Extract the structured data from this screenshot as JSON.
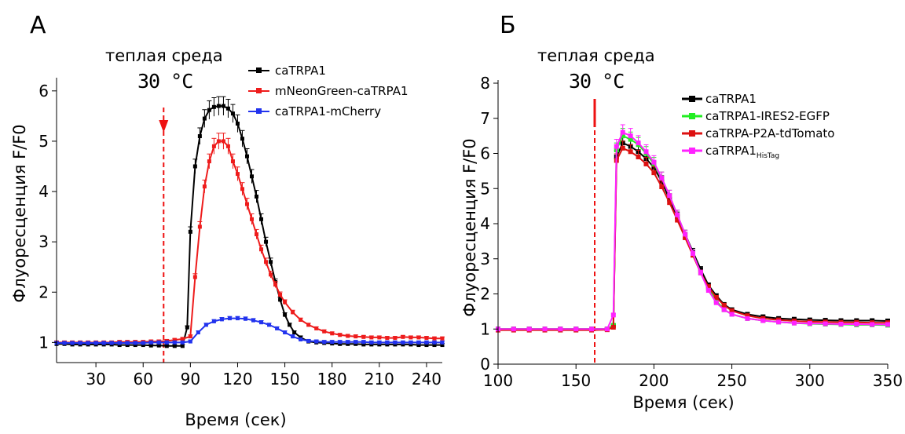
{
  "chart_data": [
    {
      "panel": "А",
      "type": "line",
      "annotation_label": "теплая среда",
      "annotation_value": "30 °C",
      "annotation_x": 73,
      "xlabel": "Время (сек)",
      "ylabel": "Флуоресценция F/F0",
      "xlim": [
        5,
        250
      ],
      "ylim": [
        0.6,
        6.2
      ],
      "x_ticks": [
        30,
        60,
        90,
        120,
        150,
        180,
        210,
        240
      ],
      "y_ticks": [
        1,
        2,
        3,
        4,
        5,
        6
      ],
      "grid": false,
      "legend_position": "top-right",
      "series": [
        {
          "name": "caTRPA1",
          "color": "#000000",
          "x": [
            5,
            10,
            15,
            20,
            25,
            30,
            35,
            40,
            45,
            50,
            55,
            60,
            65,
            70,
            75,
            80,
            85,
            88,
            90,
            93,
            96,
            99,
            102,
            105,
            108,
            111,
            114,
            117,
            120,
            123,
            126,
            129,
            132,
            135,
            138,
            141,
            144,
            147,
            150,
            153,
            156,
            160,
            165,
            170,
            175,
            180,
            185,
            190,
            195,
            200,
            205,
            210,
            215,
            220,
            225,
            230,
            235,
            240,
            245,
            250
          ],
          "y": [
            0.97,
            0.97,
            0.96,
            0.96,
            0.96,
            0.96,
            0.96,
            0.96,
            0.95,
            0.95,
            0.95,
            0.95,
            0.94,
            0.94,
            0.93,
            0.93,
            0.93,
            1.3,
            3.2,
            4.5,
            5.1,
            5.45,
            5.62,
            5.68,
            5.7,
            5.7,
            5.65,
            5.55,
            5.35,
            5.05,
            4.7,
            4.3,
            3.9,
            3.45,
            3.0,
            2.6,
            2.2,
            1.85,
            1.55,
            1.35,
            1.2,
            1.1,
            1.02,
            1.0,
            0.99,
            0.98,
            0.97,
            0.97,
            0.97,
            0.96,
            0.96,
            0.96,
            0.96,
            0.96,
            0.96,
            0.96,
            0.95,
            0.95,
            0.95,
            0.95
          ]
        },
        {
          "name": "mNeonGreen-caTRPA1",
          "color": "#ee1c1c",
          "x": [
            5,
            10,
            15,
            20,
            25,
            30,
            35,
            40,
            45,
            50,
            55,
            60,
            65,
            70,
            75,
            80,
            85,
            90,
            93,
            96,
            99,
            102,
            105,
            108,
            111,
            114,
            117,
            120,
            123,
            126,
            129,
            132,
            135,
            138,
            141,
            144,
            147,
            150,
            155,
            160,
            165,
            170,
            175,
            180,
            185,
            190,
            195,
            200,
            205,
            210,
            215,
            220,
            225,
            230,
            235,
            240,
            245,
            250
          ],
          "y": [
            1.0,
            1.0,
            1.0,
            1.0,
            1.0,
            1.0,
            1.0,
            1.0,
            1.01,
            1.01,
            1.01,
            1.01,
            1.02,
            1.02,
            1.03,
            1.05,
            1.07,
            1.12,
            2.3,
            3.3,
            4.1,
            4.6,
            4.9,
            5.0,
            5.0,
            4.9,
            4.6,
            4.35,
            4.05,
            3.75,
            3.45,
            3.15,
            2.85,
            2.6,
            2.35,
            2.15,
            1.95,
            1.8,
            1.6,
            1.45,
            1.35,
            1.28,
            1.22,
            1.18,
            1.15,
            1.13,
            1.12,
            1.11,
            1.1,
            1.1,
            1.09,
            1.09,
            1.11,
            1.1,
            1.1,
            1.09,
            1.08,
            1.08
          ]
        },
        {
          "name": "caTRPA1-mCherry",
          "color": "#2233ee",
          "x": [
            5,
            10,
            15,
            20,
            25,
            30,
            35,
            40,
            45,
            50,
            55,
            60,
            65,
            70,
            75,
            80,
            85,
            90,
            95,
            100,
            105,
            110,
            115,
            120,
            125,
            130,
            135,
            140,
            145,
            150,
            155,
            160,
            165,
            170,
            175,
            180,
            185,
            190,
            195,
            200,
            205,
            210,
            215,
            220,
            225,
            230,
            235,
            240,
            245,
            250
          ],
          "y": [
            0.99,
            0.99,
            0.99,
            0.99,
            0.99,
            0.99,
            0.99,
            0.99,
            0.99,
            0.99,
            0.99,
            0.99,
            1.0,
            1.0,
            1.0,
            1.0,
            1.0,
            1.02,
            1.2,
            1.35,
            1.42,
            1.46,
            1.48,
            1.48,
            1.47,
            1.44,
            1.4,
            1.35,
            1.28,
            1.2,
            1.12,
            1.06,
            1.03,
            1.02,
            1.01,
            1.01,
            1.01,
            1.01,
            1.01,
            1.01,
            1.0,
            1.0,
            1.0,
            1.0,
            1.0,
            1.0,
            1.0,
            1.0,
            1.0,
            1.0
          ]
        }
      ]
    },
    {
      "panel": "Б",
      "type": "line",
      "annotation_label": "теплая среда",
      "annotation_value": "30 °C",
      "annotation_x": 162,
      "xlabel": "Время (сек)",
      "ylabel": "Флуоресценция F/F0",
      "xlim": [
        100,
        350
      ],
      "ylim": [
        0,
        8
      ],
      "x_ticks": [
        100,
        150,
        200,
        250,
        300,
        350
      ],
      "y_ticks": [
        0,
        1,
        2,
        3,
        4,
        5,
        6,
        7,
        8
      ],
      "grid": false,
      "legend_position": "top-right",
      "series": [
        {
          "name": "caTRPA1",
          "color": "#000000",
          "x": [
            100,
            110,
            120,
            130,
            140,
            150,
            160,
            170,
            174,
            176,
            180,
            185,
            190,
            195,
            200,
            205,
            210,
            215,
            220,
            225,
            230,
            235,
            240,
            245,
            250,
            260,
            270,
            280,
            290,
            300,
            310,
            320,
            330,
            340,
            350
          ],
          "y": [
            1.0,
            1.0,
            1.0,
            1.0,
            1.0,
            1.0,
            1.0,
            1.0,
            1.1,
            5.9,
            6.3,
            6.2,
            6.05,
            5.85,
            5.6,
            5.2,
            4.7,
            4.2,
            3.7,
            3.2,
            2.7,
            2.25,
            1.95,
            1.7,
            1.55,
            1.42,
            1.35,
            1.3,
            1.28,
            1.26,
            1.25,
            1.24,
            1.24,
            1.24,
            1.23
          ]
        },
        {
          "name": "caTRPA1-IRES2-EGFP",
          "color": "#22ee22",
          "x": [
            100,
            110,
            120,
            130,
            140,
            150,
            160,
            170,
            174,
            176,
            180,
            185,
            190,
            195,
            200,
            205,
            210,
            215,
            220,
            225,
            230,
            235,
            240,
            245,
            250,
            260,
            270,
            280,
            290,
            300,
            310,
            320,
            330,
            340,
            350
          ],
          "y": [
            1.0,
            1.0,
            1.0,
            1.0,
            1.0,
            1.0,
            1.0,
            1.0,
            1.1,
            6.1,
            6.5,
            6.4,
            6.25,
            6.0,
            5.7,
            5.3,
            4.8,
            4.25,
            3.7,
            3.15,
            2.6,
            2.15,
            1.8,
            1.55,
            1.42,
            1.3,
            1.24,
            1.2,
            1.17,
            1.15,
            1.14,
            1.13,
            1.12,
            1.12,
            1.11
          ]
        },
        {
          "name": "caTRPA-P2A-tdTomato",
          "color": "#dd1111",
          "x": [
            100,
            110,
            120,
            130,
            140,
            150,
            160,
            170,
            174,
            176,
            180,
            185,
            190,
            195,
            200,
            205,
            210,
            215,
            220,
            225,
            230,
            235,
            240,
            245,
            250,
            260,
            270,
            280,
            290,
            300,
            310,
            320,
            330,
            340,
            350
          ],
          "y": [
            0.97,
            0.97,
            0.97,
            0.97,
            0.97,
            0.97,
            0.97,
            0.98,
            1.05,
            5.8,
            6.15,
            6.05,
            5.9,
            5.7,
            5.45,
            5.05,
            4.6,
            4.1,
            3.6,
            3.1,
            2.6,
            2.2,
            1.9,
            1.68,
            1.52,
            1.38,
            1.3,
            1.26,
            1.23,
            1.21,
            1.2,
            1.19,
            1.19,
            1.18,
            1.18
          ]
        },
        {
          "name_main": "caTRPA1",
          "name_sub": "HisTag",
          "color": "#ff22ff",
          "x": [
            100,
            110,
            120,
            130,
            140,
            150,
            160,
            170,
            174,
            176,
            180,
            185,
            190,
            195,
            200,
            205,
            210,
            215,
            220,
            225,
            230,
            235,
            240,
            245,
            250,
            260,
            270,
            280,
            290,
            300,
            310,
            320,
            330,
            340,
            350
          ],
          "y": [
            1.0,
            1.0,
            1.0,
            1.0,
            1.0,
            1.0,
            1.0,
            1.0,
            1.4,
            6.2,
            6.6,
            6.5,
            6.3,
            6.05,
            5.75,
            5.3,
            4.8,
            4.25,
            3.7,
            3.15,
            2.6,
            2.1,
            1.75,
            1.55,
            1.42,
            1.3,
            1.24,
            1.2,
            1.17,
            1.16,
            1.15,
            1.14,
            1.14,
            1.13,
            1.13
          ]
        }
      ]
    }
  ]
}
